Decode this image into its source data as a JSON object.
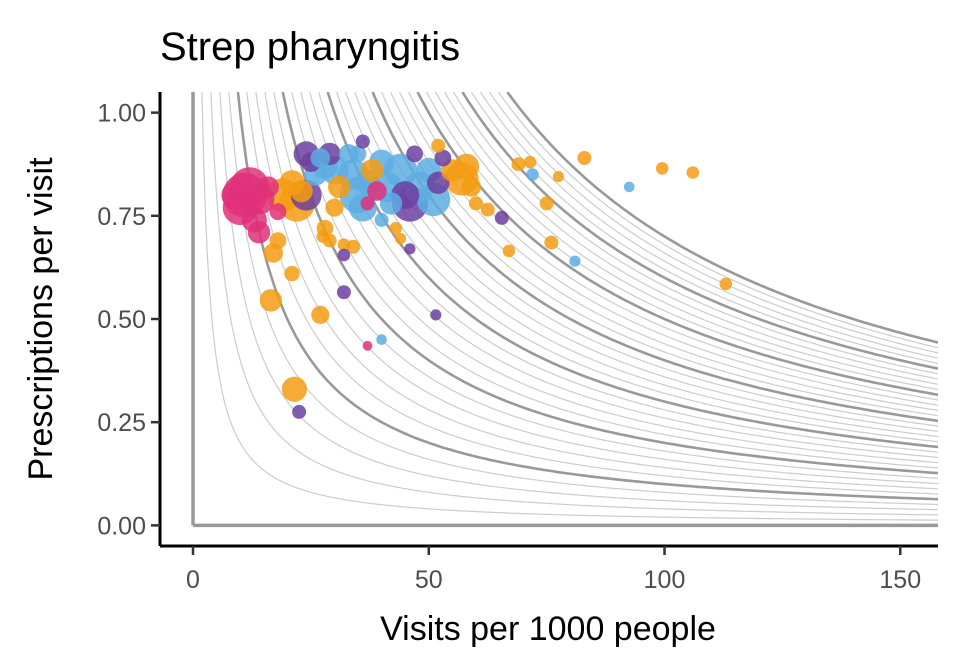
{
  "chart_data": {
    "type": "scatter",
    "title": "Strep pharyngitis",
    "xlabel": "Visits per 1000 people",
    "ylabel": "Prescriptions per visit",
    "xlim": [
      -7,
      158
    ],
    "ylim": [
      -0.05,
      1.05
    ],
    "x_ticks": [
      0,
      50,
      100,
      150
    ],
    "x_tick_labels": [
      "0",
      "50",
      "100",
      "150"
    ],
    "y_ticks": [
      0,
      0.25,
      0.5,
      0.75,
      1.0
    ],
    "y_tick_labels": [
      "0.00",
      "0.25",
      "0.50",
      "0.75",
      "1.00"
    ],
    "grid": false,
    "reference_curves": {
      "description": "iso-lines of x*y = constant",
      "light_levels": [
        2,
        4,
        6,
        8,
        12,
        14,
        16,
        18,
        22,
        24,
        26,
        28,
        32,
        34,
        36,
        38,
        42,
        44,
        46,
        48,
        52,
        54,
        56,
        58,
        62,
        64,
        66,
        68
      ],
      "dark_levels": [
        10,
        20,
        30,
        40,
        50,
        60,
        70
      ],
      "light_color": "#cccccc",
      "dark_color": "#999999",
      "axis_line_color": "#999999"
    },
    "colors": {
      "orange": "#f39c12",
      "blue": "#5dade2",
      "purple": "#6c3fa0",
      "pink": "#e0307a"
    },
    "points": [
      {
        "x": 11,
        "y": 0.8,
        "size": 3.2,
        "color": "pink"
      },
      {
        "x": 12,
        "y": 0.82,
        "size": 2.8,
        "color": "pink"
      },
      {
        "x": 10,
        "y": 0.77,
        "size": 2.5,
        "color": "pink"
      },
      {
        "x": 14,
        "y": 0.79,
        "size": 2.2,
        "color": "pink"
      },
      {
        "x": 9,
        "y": 0.8,
        "size": 2.0,
        "color": "pink"
      },
      {
        "x": 13,
        "y": 0.74,
        "size": 1.8,
        "color": "pink"
      },
      {
        "x": 14,
        "y": 0.71,
        "size": 1.6,
        "color": "pink"
      },
      {
        "x": 16,
        "y": 0.82,
        "size": 1.5,
        "color": "pink"
      },
      {
        "x": 18,
        "y": 0.76,
        "size": 1.2,
        "color": "pink"
      },
      {
        "x": 19,
        "y": 0.8,
        "size": 2.4,
        "color": "orange"
      },
      {
        "x": 21,
        "y": 0.83,
        "size": 1.8,
        "color": "orange"
      },
      {
        "x": 22,
        "y": 0.78,
        "size": 2.6,
        "color": "orange"
      },
      {
        "x": 23,
        "y": 0.81,
        "size": 1.6,
        "color": "orange"
      },
      {
        "x": 17,
        "y": 0.66,
        "size": 1.4,
        "color": "orange"
      },
      {
        "x": 18,
        "y": 0.69,
        "size": 1.2,
        "color": "orange"
      },
      {
        "x": 21,
        "y": 0.61,
        "size": 1.1,
        "color": "orange"
      },
      {
        "x": 16.5,
        "y": 0.545,
        "size": 1.6,
        "color": "orange"
      },
      {
        "x": 27,
        "y": 0.51,
        "size": 1.3,
        "color": "orange"
      },
      {
        "x": 21.5,
        "y": 0.33,
        "size": 1.8,
        "color": "orange"
      },
      {
        "x": 22.5,
        "y": 0.275,
        "size": 1.0,
        "color": "purple"
      },
      {
        "x": 24,
        "y": 0.9,
        "size": 1.8,
        "color": "purple"
      },
      {
        "x": 25,
        "y": 0.88,
        "size": 1.4,
        "color": "purple"
      },
      {
        "x": 24,
        "y": 0.8,
        "size": 2.2,
        "color": "purple"
      },
      {
        "x": 26,
        "y": 0.85,
        "size": 1.6,
        "color": "blue"
      },
      {
        "x": 27,
        "y": 0.89,
        "size": 1.4,
        "color": "blue"
      },
      {
        "x": 28,
        "y": 0.87,
        "size": 1.8,
        "color": "blue"
      },
      {
        "x": 29,
        "y": 0.9,
        "size": 1.6,
        "color": "purple"
      },
      {
        "x": 30,
        "y": 0.86,
        "size": 2.0,
        "color": "blue"
      },
      {
        "x": 31,
        "y": 0.82,
        "size": 1.6,
        "color": "orange"
      },
      {
        "x": 30,
        "y": 0.77,
        "size": 1.3,
        "color": "orange"
      },
      {
        "x": 28,
        "y": 0.72,
        "size": 1.2,
        "color": "orange"
      },
      {
        "x": 29,
        "y": 0.69,
        "size": 1.0,
        "color": "orange"
      },
      {
        "x": 27.5,
        "y": 0.7,
        "size": 0.9,
        "color": "orange"
      },
      {
        "x": 32,
        "y": 0.68,
        "size": 0.9,
        "color": "orange"
      },
      {
        "x": 34,
        "y": 0.675,
        "size": 1.0,
        "color": "orange"
      },
      {
        "x": 32,
        "y": 0.655,
        "size": 0.9,
        "color": "purple"
      },
      {
        "x": 32,
        "y": 0.565,
        "size": 1.0,
        "color": "purple"
      },
      {
        "x": 33,
        "y": 0.9,
        "size": 1.4,
        "color": "blue"
      },
      {
        "x": 34,
        "y": 0.85,
        "size": 2.2,
        "color": "blue"
      },
      {
        "x": 35,
        "y": 0.8,
        "size": 2.6,
        "color": "blue"
      },
      {
        "x": 36,
        "y": 0.77,
        "size": 2.0,
        "color": "blue"
      },
      {
        "x": 37,
        "y": 0.83,
        "size": 1.8,
        "color": "blue"
      },
      {
        "x": 35,
        "y": 0.9,
        "size": 1.2,
        "color": "blue"
      },
      {
        "x": 36,
        "y": 0.93,
        "size": 1.0,
        "color": "purple"
      },
      {
        "x": 38,
        "y": 0.86,
        "size": 1.6,
        "color": "orange"
      },
      {
        "x": 39,
        "y": 0.81,
        "size": 1.4,
        "color": "pink"
      },
      {
        "x": 37,
        "y": 0.78,
        "size": 1.0,
        "color": "pink"
      },
      {
        "x": 40,
        "y": 0.88,
        "size": 1.8,
        "color": "blue"
      },
      {
        "x": 41,
        "y": 0.82,
        "size": 2.2,
        "color": "blue"
      },
      {
        "x": 42,
        "y": 0.78,
        "size": 1.6,
        "color": "blue"
      },
      {
        "x": 40,
        "y": 0.74,
        "size": 1.0,
        "color": "blue"
      },
      {
        "x": 43,
        "y": 0.72,
        "size": 0.9,
        "color": "orange"
      },
      {
        "x": 44,
        "y": 0.695,
        "size": 0.8,
        "color": "orange"
      },
      {
        "x": 46,
        "y": 0.67,
        "size": 0.8,
        "color": "purple"
      },
      {
        "x": 44,
        "y": 0.86,
        "size": 2.4,
        "color": "blue"
      },
      {
        "x": 45,
        "y": 0.8,
        "size": 2.0,
        "color": "purple"
      },
      {
        "x": 46,
        "y": 0.78,
        "size": 2.6,
        "color": "purple"
      },
      {
        "x": 48,
        "y": 0.82,
        "size": 2.2,
        "color": "blue"
      },
      {
        "x": 50,
        "y": 0.86,
        "size": 1.8,
        "color": "blue"
      },
      {
        "x": 51,
        "y": 0.79,
        "size": 2.4,
        "color": "blue"
      },
      {
        "x": 52,
        "y": 0.83,
        "size": 1.6,
        "color": "purple"
      },
      {
        "x": 53,
        "y": 0.89,
        "size": 1.2,
        "color": "purple"
      },
      {
        "x": 47,
        "y": 0.9,
        "size": 1.2,
        "color": "purple"
      },
      {
        "x": 52,
        "y": 0.92,
        "size": 1.0,
        "color": "orange"
      },
      {
        "x": 55,
        "y": 0.86,
        "size": 1.6,
        "color": "orange"
      },
      {
        "x": 57,
        "y": 0.84,
        "size": 2.4,
        "color": "orange"
      },
      {
        "x": 58,
        "y": 0.87,
        "size": 1.8,
        "color": "orange"
      },
      {
        "x": 59,
        "y": 0.82,
        "size": 1.4,
        "color": "orange"
      },
      {
        "x": 60,
        "y": 0.78,
        "size": 1.0,
        "color": "orange"
      },
      {
        "x": 62.5,
        "y": 0.765,
        "size": 1.0,
        "color": "orange"
      },
      {
        "x": 65.5,
        "y": 0.745,
        "size": 1.0,
        "color": "purple"
      },
      {
        "x": 67,
        "y": 0.665,
        "size": 0.9,
        "color": "orange"
      },
      {
        "x": 69,
        "y": 0.875,
        "size": 1.0,
        "color": "orange"
      },
      {
        "x": 71.5,
        "y": 0.88,
        "size": 0.9,
        "color": "orange"
      },
      {
        "x": 72,
        "y": 0.85,
        "size": 0.9,
        "color": "blue"
      },
      {
        "x": 75,
        "y": 0.78,
        "size": 1.0,
        "color": "orange"
      },
      {
        "x": 76,
        "y": 0.685,
        "size": 1.0,
        "color": "orange"
      },
      {
        "x": 77.5,
        "y": 0.845,
        "size": 0.8,
        "color": "orange"
      },
      {
        "x": 81,
        "y": 0.64,
        "size": 0.8,
        "color": "blue"
      },
      {
        "x": 83,
        "y": 0.89,
        "size": 1.0,
        "color": "orange"
      },
      {
        "x": 92.5,
        "y": 0.82,
        "size": 0.75,
        "color": "blue"
      },
      {
        "x": 99.5,
        "y": 0.865,
        "size": 0.9,
        "color": "orange"
      },
      {
        "x": 106,
        "y": 0.855,
        "size": 0.9,
        "color": "orange"
      },
      {
        "x": 113,
        "y": 0.585,
        "size": 0.9,
        "color": "orange"
      },
      {
        "x": 37,
        "y": 0.435,
        "size": 0.7,
        "color": "pink"
      },
      {
        "x": 40,
        "y": 0.45,
        "size": 0.75,
        "color": "blue"
      },
      {
        "x": 51.5,
        "y": 0.51,
        "size": 0.8,
        "color": "purple"
      }
    ]
  }
}
